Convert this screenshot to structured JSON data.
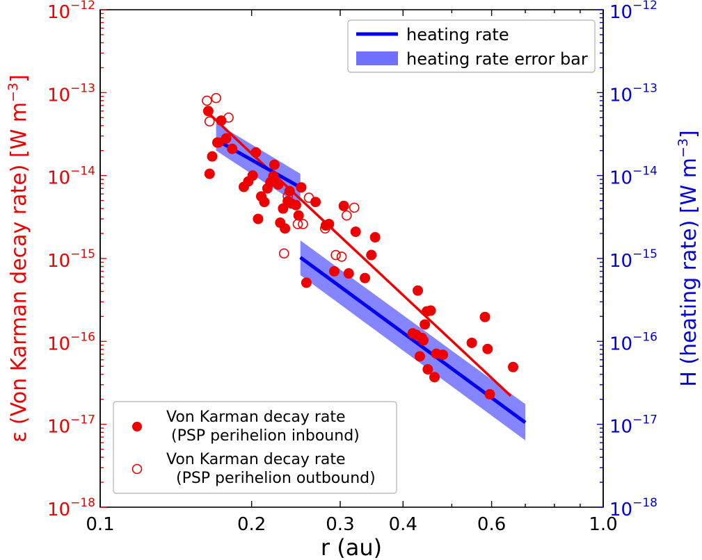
{
  "chart_data": {
    "type": "scatter",
    "xlabel": "r (au)",
    "ylabel_left": "ε (Von Karman decay rate) [W m$^{-3}$]",
    "ylabel_left_main": "ε (Von Karman decay rate) [W m",
    "ylabel_left_exp": "−3",
    "ylabel_left_close": "]",
    "ylabel_right": "H (heating rate) [W m$^{-3}$]",
    "ylabel_right_main": "H (heating rate) [W m",
    "ylabel_right_exp": "−3",
    "ylabel_right_close": "]",
    "x_scale": "log",
    "y_scale": "log",
    "xlim": [
      0.1,
      1.0
    ],
    "ylim": [
      1e-18,
      1e-12
    ],
    "x_ticks": [
      {
        "value": 0.1,
        "label": "0.1"
      },
      {
        "value": 0.2,
        "label": "0.2"
      },
      {
        "value": 0.3,
        "label": "0.3"
      },
      {
        "value": 0.4,
        "label": "0.4"
      },
      {
        "value": 0.6,
        "label": "0.6"
      },
      {
        "value": 1.0,
        "label": "1.0"
      }
    ],
    "y_ticks": [
      {
        "exp": -12,
        "base": "10",
        "sup": "−12"
      },
      {
        "exp": -13,
        "base": "10",
        "sup": "−13"
      },
      {
        "exp": -14,
        "base": "10",
        "sup": "−14"
      },
      {
        "exp": -15,
        "base": "10",
        "sup": "−15"
      },
      {
        "exp": -16,
        "base": "10",
        "sup": "−16"
      },
      {
        "exp": -17,
        "base": "10",
        "sup": "−17"
      },
      {
        "exp": -18,
        "base": "10",
        "sup": "−18"
      }
    ],
    "colors": {
      "left_axis": "#ee0000",
      "right_axis": "#0000dd",
      "heating_line": "#0000ee",
      "heating_band": "#7070ff",
      "points": "#ee0000"
    },
    "legend_top": {
      "placement": "upper-right",
      "entries": [
        {
          "label": "heating rate",
          "kind": "line"
        },
        {
          "label": "heating rate error bar",
          "kind": "band"
        }
      ]
    },
    "legend_bottom": {
      "placement": "lower-left",
      "entries": [
        {
          "line1": "Von Karman decay rate",
          "line2": " (PSP perihelion inbound)",
          "marker": "filled"
        },
        {
          "line1": "Von Karman decay rate",
          "line2": "  (PSP perihelion outbound)",
          "marker": "open"
        }
      ]
    },
    "series": [
      {
        "name": "Von Karman decay rate (PSP perihelion inbound)",
        "marker": "filled",
        "points": [
          [
            0.164,
            6e-14
          ],
          [
            0.165,
            1.05e-14
          ],
          [
            0.167,
            1.7e-14
          ],
          [
            0.171,
            2.5e-14
          ],
          [
            0.174,
            4.6e-14
          ],
          [
            0.178,
            2.8e-14
          ],
          [
            0.183,
            2.1e-14
          ],
          [
            0.193,
            7.3e-15
          ],
          [
            0.197,
            8.5e-15
          ],
          [
            0.201,
            1e-14
          ],
          [
            0.204,
            1.9e-14
          ],
          [
            0.206,
            3e-15
          ],
          [
            0.209,
            5.6e-15
          ],
          [
            0.212,
            4.8e-15
          ],
          [
            0.215,
            7e-15
          ],
          [
            0.218,
            8.3e-15
          ],
          [
            0.221,
            9.8e-15
          ],
          [
            0.222,
            1.35e-14
          ],
          [
            0.226,
            7.8e-15
          ],
          [
            0.228,
            2.7e-15
          ],
          [
            0.231,
            4e-15
          ],
          [
            0.233,
            2.3e-15
          ],
          [
            0.236,
            4.9e-15
          ],
          [
            0.238,
            6.5e-15
          ],
          [
            0.24,
            4.6e-15
          ],
          [
            0.245,
            4.4e-15
          ],
          [
            0.248,
            3.3e-15
          ],
          [
            0.251,
            7.2e-15
          ],
          [
            0.257,
            5.1e-16
          ],
          [
            0.268,
            4.8e-15
          ],
          [
            0.281,
            2.5e-15
          ],
          [
            0.285,
            2.6e-15
          ],
          [
            0.292,
            7e-16
          ],
          [
            0.305,
            4.3e-15
          ],
          [
            0.312,
            6.6e-16
          ],
          [
            0.322,
            2.1e-15
          ],
          [
            0.336,
            5.8e-16
          ],
          [
            0.346,
            1.1e-15
          ],
          [
            0.352,
            1.8e-15
          ],
          [
            0.418,
            1.25e-16
          ],
          [
            0.425,
            1.2e-16
          ],
          [
            0.428,
            4.1e-16
          ],
          [
            0.432,
            6.6e-17
          ],
          [
            0.436,
            1.1e-16
          ],
          [
            0.439,
            1.03e-16
          ],
          [
            0.442,
            1.6e-16
          ],
          [
            0.446,
            2.3e-16
          ],
          [
            0.448,
            4.6e-17
          ],
          [
            0.454,
            2.35e-16
          ],
          [
            0.462,
            3.7e-17
          ],
          [
            0.466,
            7.1e-17
          ],
          [
            0.48,
            6.9e-17
          ],
          [
            0.548,
            9.6e-17
          ],
          [
            0.582,
            1.97e-16
          ],
          [
            0.589,
            8.1e-17
          ],
          [
            0.595,
            2.3e-17
          ],
          [
            0.662,
            4.9e-17
          ]
        ]
      },
      {
        "name": "Von Karman decay rate (PSP perihelion outbound)",
        "marker": "open",
        "points": [
          [
            0.163,
            8e-14
          ],
          [
            0.165,
            4.5e-14
          ],
          [
            0.17,
            8.6e-14
          ],
          [
            0.172,
            2.5e-14
          ],
          [
            0.18,
            5e-14
          ],
          [
            0.232,
            1.15e-15
          ],
          [
            0.236,
            5.6e-15
          ],
          [
            0.247,
            2.6e-15
          ],
          [
            0.253,
            2.6e-15
          ],
          [
            0.26,
            5.4e-15
          ],
          [
            0.28,
            2.3e-15
          ],
          [
            0.294,
            1.1e-15
          ],
          [
            0.302,
            1.05e-15
          ],
          [
            0.309,
            3.3e-15
          ],
          [
            0.32,
            4.1e-15
          ]
        ]
      }
    ],
    "fit_line_epsilon": {
      "x": [
        0.165,
        0.655
      ],
      "y": [
        5.5e-14,
        2.2e-17
      ]
    },
    "heating_rate": [
      {
        "x": [
          0.17,
          0.25
        ],
        "y": [
          2.7e-14,
          7.2e-15
        ],
        "band_low": [
          2e-14,
          4.3e-15
        ],
        "band_high": [
          4.3e-14,
          1.05e-14
        ]
      },
      {
        "x": [
          0.25,
          0.7
        ],
        "y": [
          1.03e-15,
          1.05e-17
        ],
        "band_low": [
          6.3e-16,
          6.4e-18
        ],
        "band_high": [
          1.65e-15,
          1.75e-17
        ]
      }
    ]
  }
}
